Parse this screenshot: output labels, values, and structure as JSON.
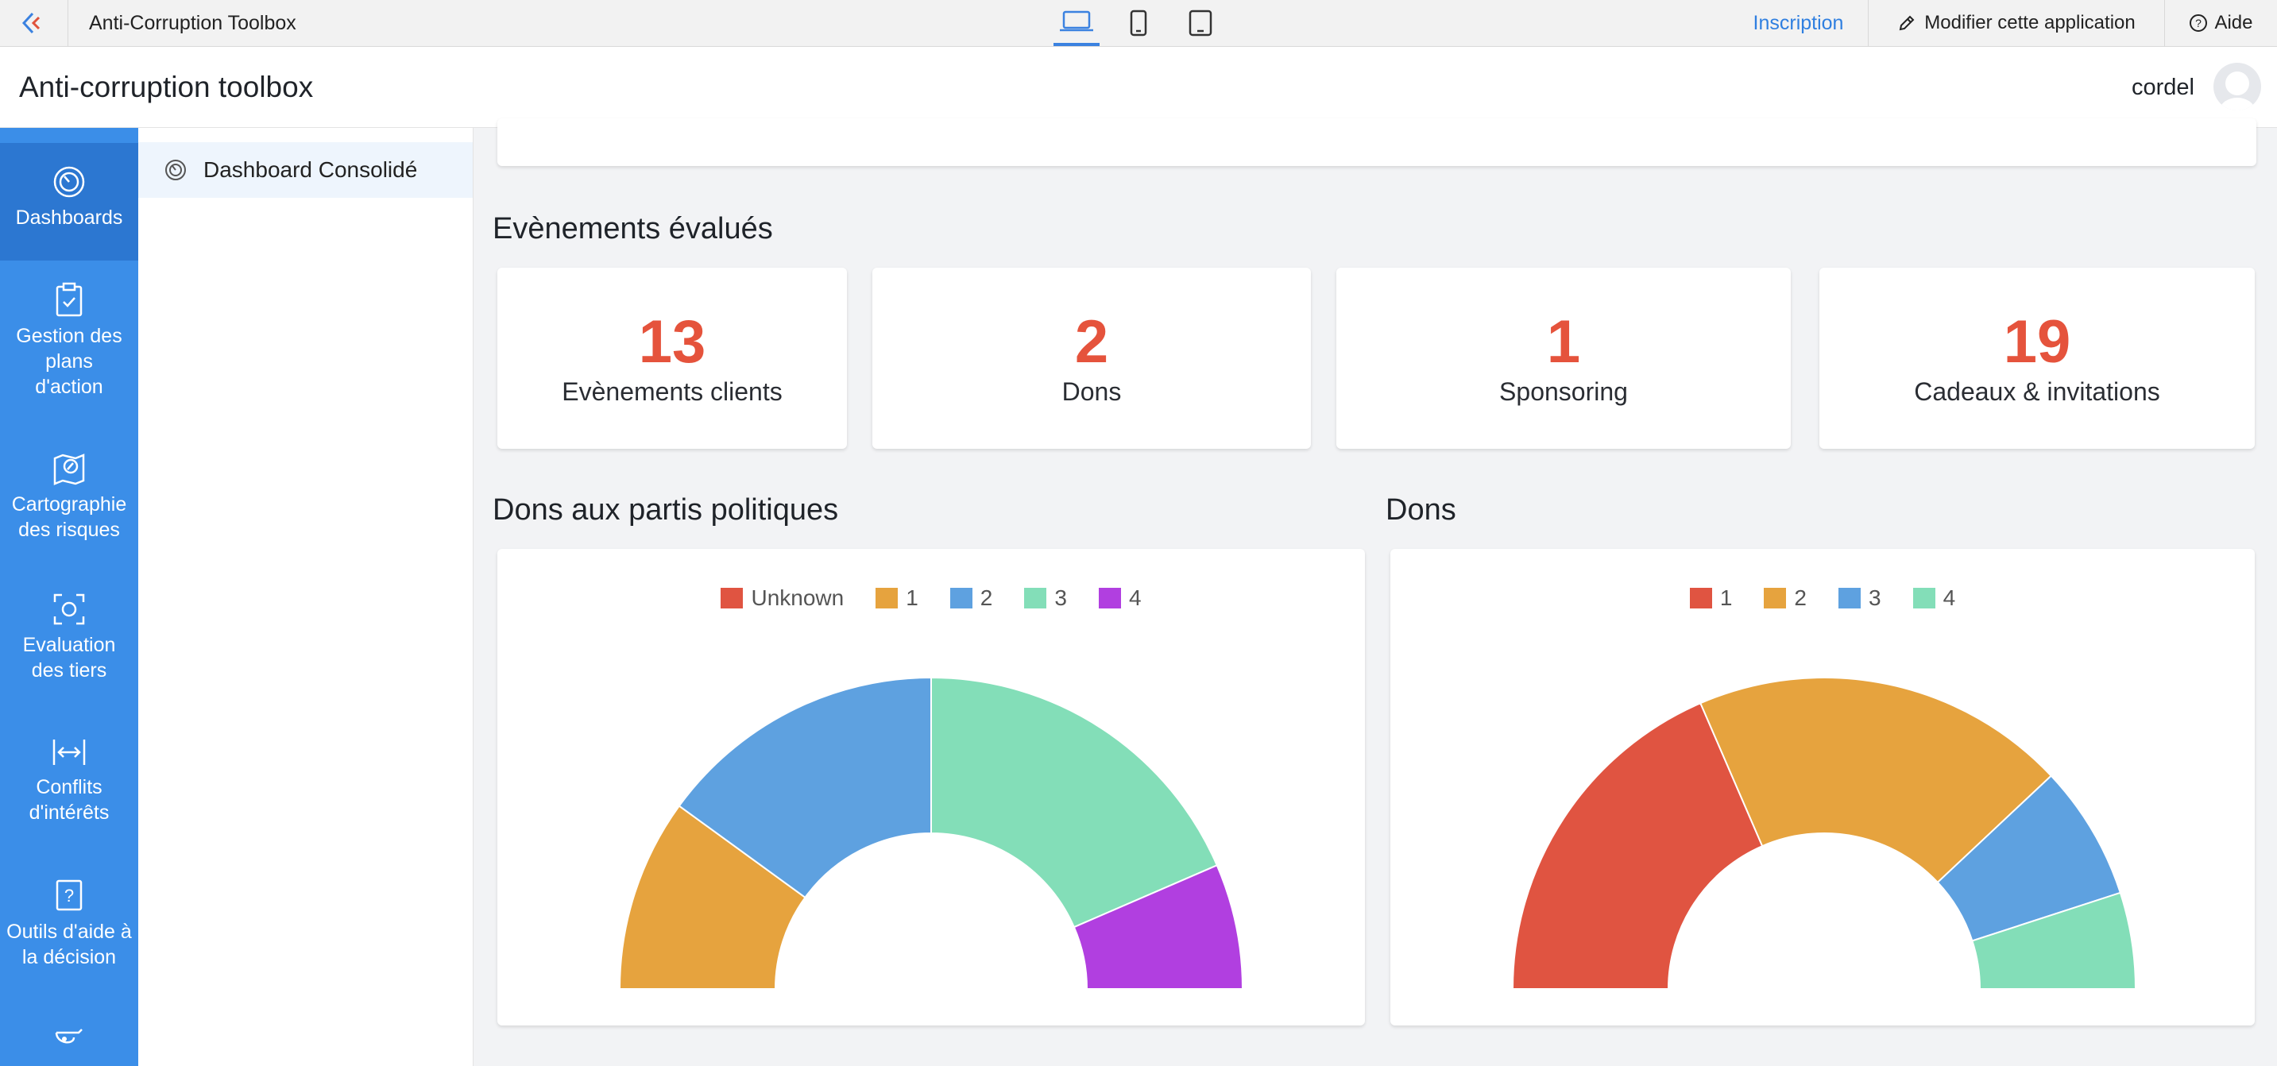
{
  "topbar": {
    "title": "Anti-Corruption Toolbox",
    "signup": "Inscription",
    "edit": "Modifier cette application",
    "help": "Aide",
    "devices": [
      "laptop-icon",
      "phone-icon",
      "tablet-icon"
    ]
  },
  "header": {
    "app_title": "Anti-corruption toolbox",
    "username": "cordel"
  },
  "rail": {
    "items": [
      {
        "icon": "dashboard-icon",
        "label": "Dashboards",
        "active": true
      },
      {
        "icon": "clipboard-check-icon",
        "label": "Gestion des plans d'action"
      },
      {
        "icon": "map-icon",
        "label": "Cartographie des risques"
      },
      {
        "icon": "focus-icon",
        "label": "Evaluation des tiers"
      },
      {
        "icon": "arrows-horizontal-icon",
        "label": "Conflits d'intérêts"
      },
      {
        "icon": "question-icon",
        "label": "Outils d'aide à la décision"
      },
      {
        "icon": "whistle-icon",
        "label": ""
      }
    ]
  },
  "sub_sidebar": {
    "item": "Dashboard Consolidé"
  },
  "main": {
    "events_title": "Evènements évalués",
    "stats": [
      {
        "value": "13",
        "label": "Evènements clients"
      },
      {
        "value": "2",
        "label": "Dons"
      },
      {
        "value": "1",
        "label": "Sponsoring"
      },
      {
        "value": "19",
        "label": "Cadeaux & invitations"
      }
    ],
    "chart1_title": "Dons aux partis politiques",
    "chart2_title": "Dons"
  },
  "colors": {
    "accent": "#3b8ee8",
    "stat_number": "#e5533c",
    "red": "#e05441",
    "orange": "#e6a33e",
    "blue": "#5ea1e0",
    "teal": "#83deb8",
    "purple": "#b13fe0"
  },
  "chart_data": [
    {
      "type": "pie",
      "subtype": "half-donut",
      "title": "Dons aux partis politiques",
      "categories": [
        "Unknown",
        "1",
        "2",
        "3",
        "4"
      ],
      "values": [
        0,
        20,
        30,
        37,
        13
      ],
      "colors": [
        "#e05441",
        "#e6a33e",
        "#5ea1e0",
        "#83deb8",
        "#b13fe0"
      ],
      "legend": "top-center"
    },
    {
      "type": "pie",
      "subtype": "half-donut",
      "title": "Dons",
      "categories": [
        "1",
        "2",
        "3",
        "4"
      ],
      "values": [
        37,
        39,
        14,
        10
      ],
      "colors": [
        "#e05441",
        "#e6a33e",
        "#5ea1e0",
        "#83deb8"
      ],
      "legend": "top-center"
    }
  ]
}
